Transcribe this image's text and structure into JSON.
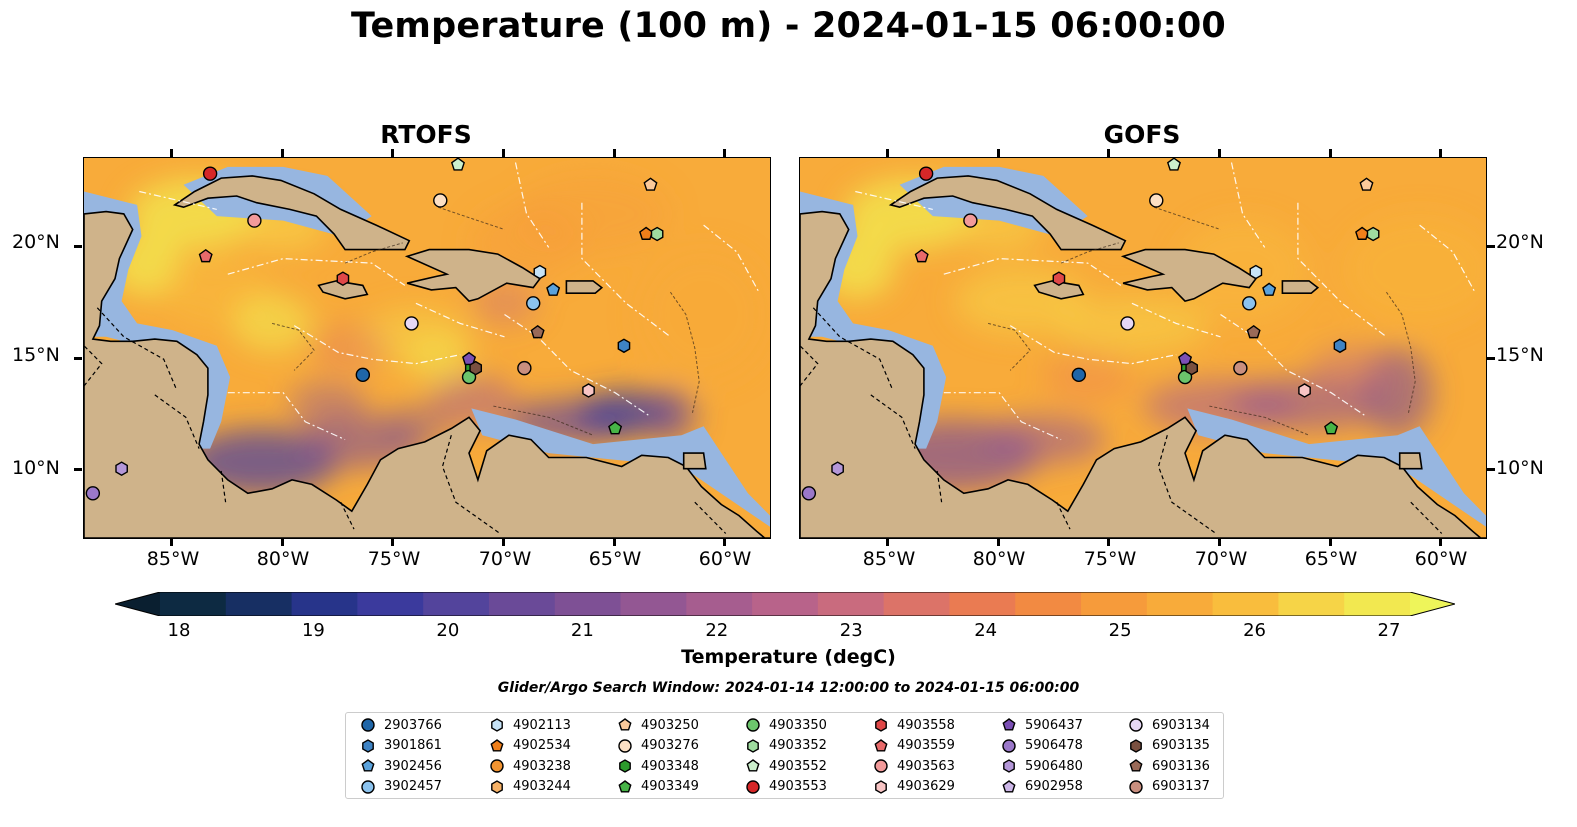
{
  "title": "Temperature (100 m) - 2024-01-15 06:00:00",
  "panels": [
    {
      "name": "RTOFS"
    },
    {
      "name": "GOFS"
    }
  ],
  "map_extent": {
    "lon_min": -89,
    "lon_max": -58,
    "lat_min": 7,
    "lat_max": 24
  },
  "lat_ticks": [
    "20°N",
    "15°N",
    "10°N"
  ],
  "lon_ticks": [
    "85°W",
    "80°W",
    "75°W",
    "70°W",
    "65°W",
    "60°W"
  ],
  "colorbar": {
    "label": "Temperature (degC)",
    "ticks": [
      "18",
      "19",
      "20",
      "21",
      "22",
      "23",
      "24",
      "25",
      "26",
      "27"
    ],
    "colors": [
      "#0d2a42",
      "#172f63",
      "#27348a",
      "#3b3a9d",
      "#53449c",
      "#6a4a98",
      "#7e5095",
      "#935793",
      "#a65d8f",
      "#b8638a",
      "#c96b7e",
      "#dc7368",
      "#ea7b52",
      "#f28a42",
      "#f69b3b",
      "#f8ab3a",
      "#f9bd3d",
      "#f6d447",
      "#f2e850"
    ]
  },
  "search_window": "Glider/Argo Search Window: 2024-01-14 12:00:00 to 2024-01-15 06:00:00",
  "legend": [
    {
      "id": "2903766",
      "color": "#1f66a8",
      "shape": "circle"
    },
    {
      "id": "3901861",
      "color": "#3e83c4",
      "shape": "hexagon"
    },
    {
      "id": "3902456",
      "color": "#5aa2dc",
      "shape": "pentagon"
    },
    {
      "id": "3902457",
      "color": "#8cc3ee",
      "shape": "circle"
    },
    {
      "id": "4902113",
      "color": "#c6e3f7",
      "shape": "hexagon"
    },
    {
      "id": "4902534",
      "color": "#f07f1a",
      "shape": "pentagon"
    },
    {
      "id": "4903238",
      "color": "#f29431",
      "shape": "circle"
    },
    {
      "id": "4903244",
      "color": "#f7b267",
      "shape": "hexagon"
    },
    {
      "id": "4903250",
      "color": "#fbc99a",
      "shape": "pentagon"
    },
    {
      "id": "4903276",
      "color": "#fde0c4",
      "shape": "circle"
    },
    {
      "id": "4903348",
      "color": "#2c9a2c",
      "shape": "hexagon"
    },
    {
      "id": "4903349",
      "color": "#47b447",
      "shape": "pentagon"
    },
    {
      "id": "4903350",
      "color": "#6cc56c",
      "shape": "circle"
    },
    {
      "id": "4903352",
      "color": "#9fdc9f",
      "shape": "hexagon"
    },
    {
      "id": "4903552",
      "color": "#cdf0cd",
      "shape": "pentagon"
    },
    {
      "id": "4903553",
      "color": "#d62728",
      "shape": "circle"
    },
    {
      "id": "4903558",
      "color": "#e04848",
      "shape": "hexagon"
    },
    {
      "id": "4903559",
      "color": "#e86a6a",
      "shape": "pentagon"
    },
    {
      "id": "4903563",
      "color": "#f29a9a",
      "shape": "circle"
    },
    {
      "id": "4903629",
      "color": "#f8c5c5",
      "shape": "hexagon"
    },
    {
      "id": "5906437",
      "color": "#7b4fb5",
      "shape": "pentagon"
    },
    {
      "id": "5906478",
      "color": "#9b78c9",
      "shape": "circle"
    },
    {
      "id": "5906480",
      "color": "#b497d8",
      "shape": "hexagon"
    },
    {
      "id": "6902958",
      "color": "#cdb7e8",
      "shape": "pentagon"
    },
    {
      "id": "6903134",
      "color": "#e6d8f5",
      "shape": "circle"
    },
    {
      "id": "6903135",
      "color": "#7a5040",
      "shape": "hexagon"
    },
    {
      "id": "6903136",
      "color": "#9a6a58",
      "shape": "pentagon"
    },
    {
      "id": "6903137",
      "color": "#c98f7f",
      "shape": "circle"
    }
  ],
  "markers": [
    {
      "id": "2903766",
      "lon": -76.4,
      "lat": 14.3
    },
    {
      "id": "3901861",
      "lon": -64.6,
      "lat": 15.6
    },
    {
      "id": "3902456",
      "lon": -67.8,
      "lat": 18.1
    },
    {
      "id": "3902457",
      "lon": -68.7,
      "lat": 17.5
    },
    {
      "id": "4902113",
      "lon": -68.4,
      "lat": 18.9
    },
    {
      "id": "4902534",
      "lon": -63.6,
      "lat": 20.6
    },
    {
      "id": "4903250",
      "lon": -63.4,
      "lat": 22.8
    },
    {
      "id": "4903276",
      "lon": -72.9,
      "lat": 22.1
    },
    {
      "id": "4903348",
      "lon": -71.5,
      "lat": 14.6
    },
    {
      "id": "4903349",
      "lon": -65.0,
      "lat": 11.9
    },
    {
      "id": "4903350",
      "lon": -71.6,
      "lat": 14.2
    },
    {
      "id": "4903352",
      "lon": -63.1,
      "lat": 20.6
    },
    {
      "id": "4903552",
      "lon": -72.1,
      "lat": 23.7
    },
    {
      "id": "4903553",
      "lon": -83.3,
      "lat": 23.3
    },
    {
      "id": "4903558",
      "lon": -77.3,
      "lat": 18.6
    },
    {
      "id": "4903559",
      "lon": -83.5,
      "lat": 19.6
    },
    {
      "id": "4903563",
      "lon": -81.3,
      "lat": 21.2
    },
    {
      "id": "4903629",
      "lon": -66.2,
      "lat": 13.6
    },
    {
      "id": "5906437",
      "lon": -71.6,
      "lat": 15.0
    },
    {
      "id": "5906478",
      "lon": -88.6,
      "lat": 9.0
    },
    {
      "id": "5906480",
      "lon": -87.3,
      "lat": 10.1
    },
    {
      "id": "6903134",
      "lon": -74.2,
      "lat": 16.6
    },
    {
      "id": "6903135",
      "lon": -71.3,
      "lat": 14.6
    },
    {
      "id": "6903136",
      "lon": -68.5,
      "lat": 16.2
    },
    {
      "id": "6903137",
      "lon": -69.1,
      "lat": 14.6
    }
  ]
}
